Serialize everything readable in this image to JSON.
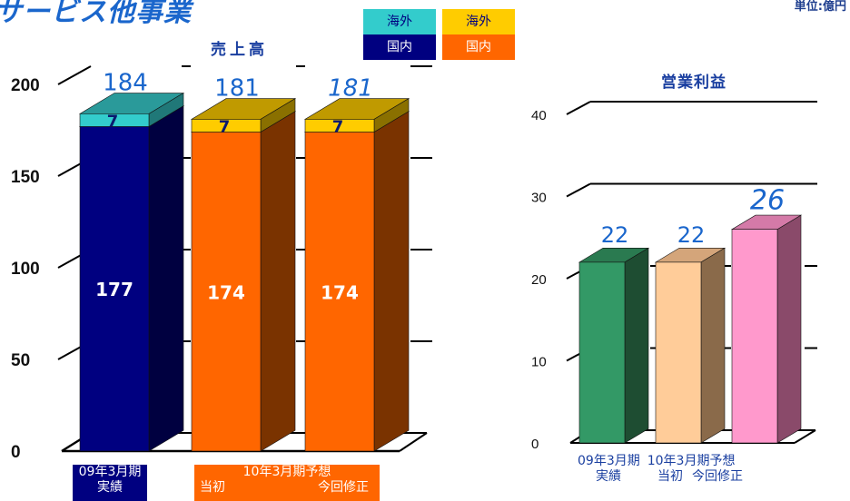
{
  "header": {
    "title": "サービス他事業",
    "unit": "単位:億円"
  },
  "legend": {
    "domestic_label": "国内",
    "overseas_label": "海外",
    "colors": {
      "overseas_actual": "#33cccc",
      "domestic_actual": "#000080",
      "overseas_forecast": "#ffcc00",
      "domestic_forecast": "#ff6600"
    }
  },
  "chart_data": [
    {
      "type": "bar",
      "title": "売上高",
      "categories": [
        "09年3月期 実績",
        "10年3月期予想 当初",
        "10年3月期予想 今回修正"
      ],
      "series": [
        {
          "name": "国内",
          "values": [
            177,
            174,
            174
          ]
        },
        {
          "name": "海外",
          "values": [
            7,
            7,
            7
          ]
        }
      ],
      "totals": [
        184,
        181,
        181
      ],
      "ylim": [
        0,
        200
      ],
      "yticks": [
        0,
        50,
        100,
        150,
        200
      ],
      "stacked": true
    },
    {
      "type": "bar",
      "title": "営業利益",
      "categories": [
        "09年3月期 実績",
        "10年3月期予想 当初",
        "10年3月期予想 今回修正"
      ],
      "values": [
        22,
        22,
        26
      ],
      "ylim": [
        0,
        40
      ],
      "yticks": [
        0,
        10,
        20,
        30,
        40
      ]
    }
  ],
  "xaxis": {
    "actual_line1": "09年3月期",
    "actual_line2": "実績",
    "forecast_line1": "10年3月期予想",
    "forecast_initial": "当初",
    "forecast_revised": "今回修正",
    "right_l1a": "09年3月期",
    "right_l1b": "10年3月期予想",
    "right_l2a": "実績",
    "right_l2b": "当初",
    "right_l2c": "今回修正"
  }
}
